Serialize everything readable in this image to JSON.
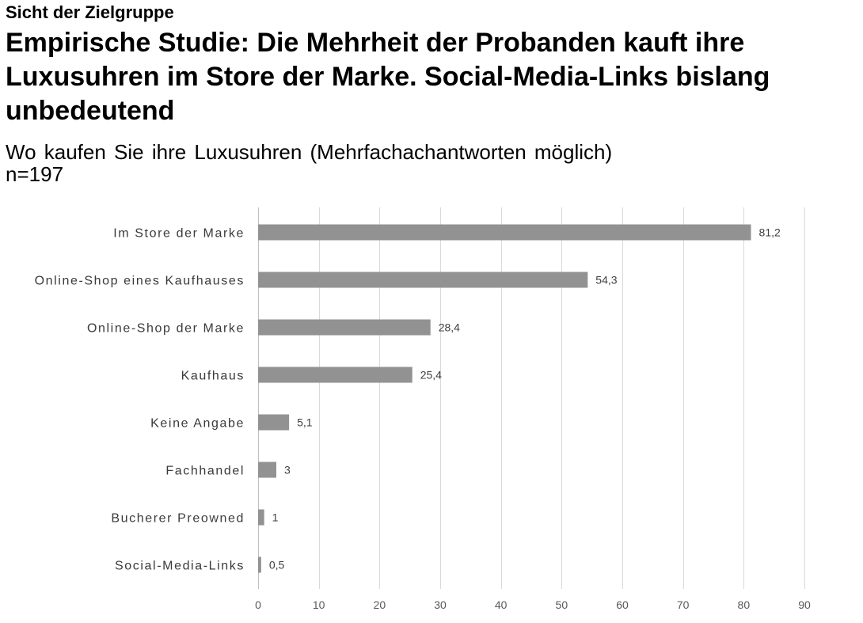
{
  "header": {
    "kicker": "Sicht der Zielgruppe",
    "headline": "Empirische Studie: Die Mehrheit der Probanden kauft ihre Luxusuhren im Store der Marke. Social-Media-Links bislang unbedeutend",
    "subtitle": "Wo kaufen Sie ihre Luxusuhren  (Mehrfachachantworten  möglich)",
    "sample_size": "n=197"
  },
  "chart_data": {
    "type": "bar",
    "orientation": "horizontal",
    "categories": [
      "Im Store der Marke",
      "Online-Shop eines Kaufhauses",
      "Online-Shop der Marke",
      "Kaufhaus",
      "Keine Angabe",
      "Fachhandel",
      "Bucherer Preowned",
      "Social-Media-Links"
    ],
    "values": [
      81.2,
      54.3,
      28.4,
      25.4,
      5.1,
      3,
      1,
      0.5
    ],
    "value_labels": [
      "81,2",
      "54,3",
      "28,4",
      "25,4",
      "5,1",
      "3",
      "1",
      "0,5"
    ],
    "xlim": [
      0,
      90
    ],
    "xticks": [
      0,
      10,
      20,
      30,
      40,
      50,
      60,
      70,
      80,
      90
    ],
    "grid": true,
    "legend": "none",
    "colors": {
      "bar": "#929292",
      "grid": "#d9d9d9",
      "axis": "#bfbfbf"
    }
  }
}
